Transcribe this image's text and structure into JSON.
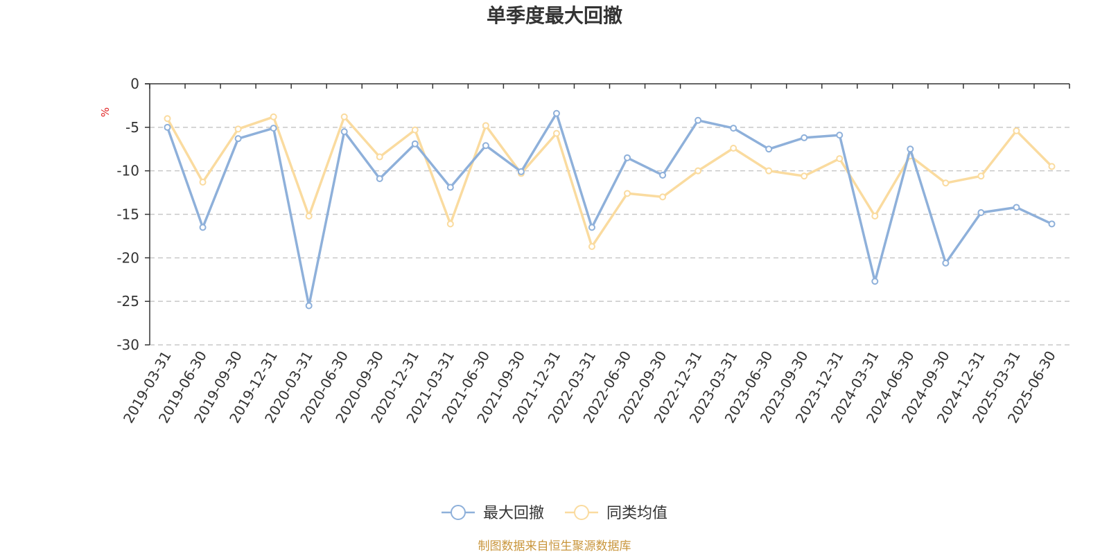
{
  "chart_data": {
    "type": "line",
    "title": "单季度最大回撤",
    "ylabel": "%",
    "xlabel": "",
    "ylim": [
      -30,
      0
    ],
    "yticks": [
      0,
      -5,
      -10,
      -15,
      -20,
      -25,
      -30
    ],
    "grid": "horizontal dashed",
    "legend_position": "bottom-center",
    "categories": [
      "2019-03-31",
      "2019-06-30",
      "2019-09-30",
      "2019-12-31",
      "2020-03-31",
      "2020-06-30",
      "2020-09-30",
      "2020-12-31",
      "2021-03-31",
      "2021-06-30",
      "2021-09-30",
      "2021-12-31",
      "2022-03-31",
      "2022-06-30",
      "2022-09-30",
      "2022-12-31",
      "2023-03-31",
      "2023-06-30",
      "2023-09-30",
      "2023-12-31",
      "2024-03-31",
      "2024-06-30",
      "2024-09-30",
      "2024-12-31",
      "2025-03-31",
      "2025-06-30"
    ],
    "series": [
      {
        "name": "最大回撤",
        "color": "#8eb0da",
        "values": [
          -5.0,
          -16.5,
          -6.3,
          -5.1,
          -25.5,
          -5.5,
          -10.9,
          -6.9,
          -11.9,
          -7.1,
          -10.1,
          -3.4,
          -16.5,
          -8.5,
          -10.5,
          -4.2,
          -5.1,
          -7.5,
          -6.2,
          -5.9,
          -22.7,
          -7.5,
          -20.6,
          -14.8,
          -14.2,
          -16.1
        ]
      },
      {
        "name": "同类均值",
        "color": "#fadb9f",
        "values": [
          -4.0,
          -11.3,
          -5.2,
          -3.8,
          -15.2,
          -3.8,
          -8.4,
          -5.3,
          -16.1,
          -4.8,
          -10.3,
          -5.7,
          -18.7,
          -12.6,
          -13.0,
          -10.0,
          -7.4,
          -10.0,
          -10.6,
          -8.6,
          -15.2,
          -8.3,
          -11.4,
          -10.6,
          -5.4,
          -9.5
        ]
      }
    ]
  },
  "footer": {
    "source": "制图数据来自恒生聚源数据库",
    "source_color": "#c9963d"
  },
  "unit_color": "#e02020"
}
